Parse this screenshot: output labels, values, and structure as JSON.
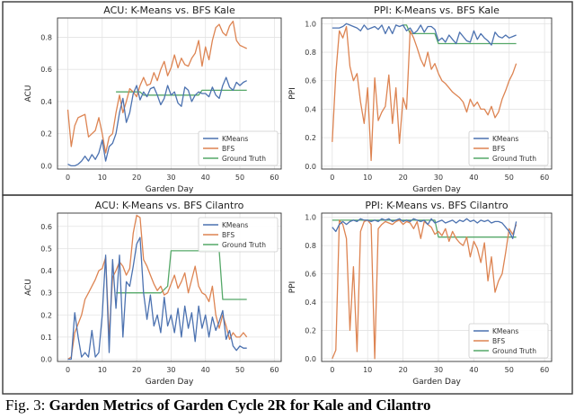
{
  "caption": {
    "prefix": "Fig. 3:",
    "text": "Garden Metrics of Garden Cycle 2R for Kale and Cilantro"
  },
  "colors": {
    "kmeans": "#4c72b0",
    "bfs": "#dd8452",
    "ground_truth": "#55a868",
    "border": "#3a3a3a"
  },
  "chart_data": [
    {
      "type": "line",
      "title": "ACU: K-Means vs. BFS Kale",
      "xlabel": "Garden Day",
      "ylabel": "ACU",
      "xlim": [
        -3,
        62
      ],
      "ylim": [
        -0.02,
        0.92
      ],
      "xticks": [
        0,
        10,
        20,
        30,
        40,
        50,
        60
      ],
      "yticks": [
        0.0,
        0.2,
        0.4,
        0.6,
        0.8
      ],
      "ytick_labels": [
        "0.0",
        "0.2",
        "0.4",
        "0.6",
        "0.8"
      ],
      "legend": [
        "KMeans",
        "BFS",
        "Ground Truth"
      ],
      "legend_position": "lower-right",
      "series": [
        {
          "name": "KMeans",
          "x": [
            0,
            1,
            2,
            3,
            4,
            5,
            6,
            7,
            8,
            9,
            10,
            11,
            12,
            13,
            14,
            15,
            16,
            17,
            18,
            19,
            20,
            21,
            22,
            23,
            24,
            25,
            26,
            27,
            28,
            29,
            30,
            31,
            32,
            33,
            34,
            35,
            36,
            37,
            38,
            39,
            40,
            41,
            42,
            43,
            44,
            45,
            46,
            47,
            48,
            49,
            50,
            51,
            52
          ],
          "y": [
            0.01,
            0.0,
            0.0,
            0.01,
            0.03,
            0.06,
            0.03,
            0.07,
            0.04,
            0.08,
            0.16,
            0.03,
            0.12,
            0.14,
            0.2,
            0.33,
            0.42,
            0.27,
            0.33,
            0.45,
            0.5,
            0.41,
            0.46,
            0.43,
            0.48,
            0.49,
            0.44,
            0.38,
            0.42,
            0.5,
            0.44,
            0.46,
            0.39,
            0.37,
            0.49,
            0.47,
            0.4,
            0.44,
            0.46,
            0.45,
            0.45,
            0.43,
            0.49,
            0.44,
            0.42,
            0.5,
            0.55,
            0.49,
            0.47,
            0.52,
            0.5,
            0.52,
            0.53
          ]
        },
        {
          "name": "BFS",
          "x": [
            0,
            1,
            2,
            3,
            4,
            5,
            6,
            7,
            8,
            9,
            10,
            11,
            12,
            13,
            14,
            15,
            16,
            17,
            18,
            19,
            20,
            21,
            22,
            23,
            24,
            25,
            26,
            27,
            28,
            29,
            30,
            31,
            32,
            33,
            34,
            35,
            36,
            37,
            38,
            39,
            40,
            41,
            42,
            43,
            44,
            45,
            46,
            47,
            48,
            49,
            50,
            51,
            52
          ],
          "y": [
            0.35,
            0.12,
            0.25,
            0.3,
            0.31,
            0.32,
            0.18,
            0.2,
            0.22,
            0.3,
            0.2,
            0.08,
            0.18,
            0.2,
            0.33,
            0.44,
            0.33,
            0.4,
            0.48,
            0.46,
            0.43,
            0.5,
            0.55,
            0.5,
            0.51,
            0.58,
            0.53,
            0.6,
            0.65,
            0.56,
            0.61,
            0.69,
            0.61,
            0.67,
            0.63,
            0.62,
            0.67,
            0.7,
            0.78,
            0.62,
            0.74,
            0.66,
            0.78,
            0.86,
            0.88,
            0.83,
            0.81,
            0.87,
            0.9,
            0.78,
            0.75,
            0.74,
            0.73
          ]
        },
        {
          "name": "Ground Truth",
          "x": [
            14,
            21,
            22,
            27,
            38,
            39,
            52
          ],
          "y": [
            0.46,
            0.46,
            0.44,
            0.44,
            0.44,
            0.47,
            0.47
          ]
        }
      ]
    },
    {
      "type": "line",
      "title": "PPI: K-Means vs. BFS Kale",
      "xlabel": "Garden Day",
      "ylabel": "PPI",
      "xlim": [
        -3,
        62
      ],
      "ylim": [
        -0.02,
        1.04
      ],
      "xticks": [
        0,
        10,
        20,
        30,
        40,
        50,
        60
      ],
      "yticks": [
        0.0,
        0.2,
        0.4,
        0.6,
        0.8,
        1.0
      ],
      "ytick_labels": [
        "0.0",
        "0.2",
        "0.4",
        "0.6",
        "0.8",
        "1.0"
      ],
      "legend": [
        "KMeans",
        "BFS",
        "Ground Truth"
      ],
      "legend_position": "lower-right",
      "series": [
        {
          "name": "KMeans",
          "x": [
            0,
            1,
            2,
            3,
            4,
            5,
            6,
            7,
            8,
            9,
            10,
            11,
            12,
            13,
            14,
            15,
            16,
            17,
            18,
            19,
            20,
            21,
            22,
            23,
            24,
            25,
            26,
            27,
            28,
            29,
            30,
            31,
            32,
            33,
            34,
            35,
            36,
            37,
            38,
            39,
            40,
            41,
            42,
            43,
            44,
            45,
            46,
            47,
            48,
            49,
            50,
            51,
            52
          ],
          "y": [
            0.97,
            0.97,
            0.97,
            0.98,
            1.0,
            0.99,
            0.98,
            0.97,
            0.95,
            0.99,
            0.96,
            0.97,
            0.98,
            0.96,
            0.99,
            0.93,
            0.98,
            0.93,
            0.99,
            0.98,
            0.99,
            0.95,
            0.97,
            0.93,
            0.95,
            0.99,
            0.94,
            0.98,
            0.98,
            0.96,
            0.88,
            0.9,
            0.87,
            0.92,
            0.89,
            0.86,
            0.94,
            0.91,
            0.88,
            0.87,
            0.95,
            0.89,
            0.93,
            0.9,
            0.88,
            0.85,
            0.94,
            0.91,
            0.9,
            0.92,
            0.9,
            0.91,
            0.92
          ]
        },
        {
          "name": "BFS",
          "x": [
            0,
            1,
            2,
            3,
            4,
            5,
            6,
            7,
            8,
            9,
            10,
            11,
            12,
            13,
            14,
            15,
            16,
            17,
            18,
            19,
            20,
            21,
            22,
            23,
            24,
            25,
            26,
            27,
            28,
            29,
            30,
            31,
            32,
            33,
            34,
            35,
            36,
            37,
            38,
            39,
            40,
            41,
            42,
            43,
            44,
            45,
            46,
            47,
            48,
            49,
            50,
            51,
            52
          ],
          "y": [
            0.17,
            0.65,
            0.95,
            0.9,
            0.98,
            0.7,
            0.6,
            0.65,
            0.45,
            0.3,
            0.55,
            0.04,
            0.62,
            0.32,
            0.38,
            0.42,
            0.64,
            0.3,
            0.55,
            0.16,
            0.48,
            0.4,
            0.95,
            0.9,
            0.83,
            0.75,
            0.7,
            0.8,
            0.68,
            0.72,
            0.65,
            0.6,
            0.58,
            0.55,
            0.52,
            0.5,
            0.48,
            0.45,
            0.38,
            0.47,
            0.42,
            0.45,
            0.4,
            0.4,
            0.36,
            0.42,
            0.34,
            0.38,
            0.47,
            0.53,
            0.6,
            0.65,
            0.72
          ]
        },
        {
          "name": "Ground Truth",
          "x": [
            20,
            21,
            22,
            29,
            30,
            52
          ],
          "y": [
            0.99,
            0.99,
            0.93,
            0.93,
            0.86,
            0.86
          ]
        }
      ]
    },
    {
      "type": "line",
      "title": "ACU: K-Means vs. BFS Cilantro",
      "xlabel": "Garden Day",
      "ylabel": "ACU",
      "xlim": [
        -3,
        62
      ],
      "ylim": [
        -0.01,
        0.66
      ],
      "xticks": [
        0,
        10,
        20,
        30,
        40,
        50,
        60
      ],
      "yticks": [
        0.0,
        0.1,
        0.2,
        0.3,
        0.4,
        0.5,
        0.6
      ],
      "ytick_labels": [
        "0.0",
        "0.1",
        "0.2",
        "0.3",
        "0.4",
        "0.5",
        "0.6"
      ],
      "legend": [
        "KMeans",
        "BFS",
        "Ground Truth"
      ],
      "legend_position": "top-right",
      "series": [
        {
          "name": "KMeans",
          "x": [
            0,
            1,
            2,
            3,
            4,
            5,
            6,
            7,
            8,
            9,
            10,
            11,
            12,
            13,
            14,
            15,
            16,
            17,
            18,
            19,
            20,
            21,
            22,
            23,
            24,
            25,
            26,
            27,
            28,
            29,
            30,
            31,
            32,
            33,
            34,
            35,
            36,
            37,
            38,
            39,
            40,
            41,
            42,
            43,
            44,
            45,
            46,
            47,
            48,
            49,
            50,
            51,
            52
          ],
          "y": [
            0.0,
            0.0,
            0.21,
            0.1,
            0.01,
            0.03,
            0.01,
            0.13,
            0.01,
            0.03,
            0.2,
            0.47,
            0.03,
            0.45,
            0.23,
            0.47,
            0.1,
            0.35,
            0.33,
            0.42,
            0.52,
            0.55,
            0.3,
            0.18,
            0.29,
            0.15,
            0.2,
            0.12,
            0.28,
            0.15,
            0.2,
            0.12,
            0.23,
            0.1,
            0.24,
            0.14,
            0.21,
            0.08,
            0.24,
            0.14,
            0.2,
            0.1,
            0.19,
            0.13,
            0.17,
            0.22,
            0.09,
            0.13,
            0.06,
            0.04,
            0.06,
            0.05,
            0.05
          ]
        },
        {
          "name": "BFS",
          "x": [
            0,
            1,
            2,
            3,
            4,
            5,
            6,
            7,
            8,
            9,
            10,
            11,
            12,
            13,
            14,
            15,
            16,
            17,
            18,
            19,
            20,
            21,
            22,
            23,
            24,
            25,
            26,
            27,
            28,
            29,
            30,
            31,
            32,
            33,
            34,
            35,
            36,
            37,
            38,
            39,
            40,
            41,
            42,
            43,
            44,
            45,
            46,
            47,
            48,
            49,
            50,
            51,
            52
          ],
          "y": [
            0.0,
            0.01,
            0.12,
            0.16,
            0.2,
            0.27,
            0.3,
            0.33,
            0.36,
            0.4,
            0.41,
            0.46,
            0.1,
            0.37,
            0.4,
            0.44,
            0.42,
            0.38,
            0.41,
            0.57,
            0.65,
            0.64,
            0.45,
            0.42,
            0.38,
            0.34,
            0.31,
            0.33,
            0.29,
            0.3,
            0.34,
            0.38,
            0.32,
            0.35,
            0.39,
            0.3,
            0.36,
            0.42,
            0.33,
            0.3,
            0.29,
            0.26,
            0.33,
            0.2,
            0.14,
            0.2,
            0.15,
            0.09,
            0.12,
            0.1,
            0.1,
            0.12,
            0.1
          ]
        },
        {
          "name": "Ground Truth",
          "x": [
            14,
            27,
            29,
            30,
            44,
            45,
            52
          ],
          "y": [
            0.3,
            0.3,
            0.33,
            0.49,
            0.49,
            0.27,
            0.27
          ]
        }
      ]
    },
    {
      "type": "line",
      "title": "PPI: K-Means vs. BFS Cilantro",
      "xlabel": "Garden Day",
      "ylabel": "PPI",
      "xlim": [
        -3,
        62
      ],
      "ylim": [
        -0.02,
        1.03
      ],
      "xticks": [
        0,
        10,
        20,
        30,
        40,
        50,
        60
      ],
      "yticks": [
        0.0,
        0.2,
        0.4,
        0.6,
        0.8,
        1.0
      ],
      "ytick_labels": [
        "0.0",
        "0.2",
        "0.4",
        "0.6",
        "0.8",
        "1.0"
      ],
      "legend": [
        "KMeans",
        "BFS",
        "Ground Truth"
      ],
      "legend_position": "lower-right",
      "series": [
        {
          "name": "KMeans",
          "x": [
            0,
            1,
            2,
            3,
            4,
            5,
            6,
            7,
            8,
            9,
            10,
            11,
            12,
            13,
            14,
            15,
            16,
            17,
            18,
            19,
            20,
            21,
            22,
            23,
            24,
            25,
            26,
            27,
            28,
            29,
            30,
            31,
            32,
            33,
            34,
            35,
            36,
            37,
            38,
            39,
            40,
            41,
            42,
            43,
            44,
            45,
            46,
            47,
            48,
            49,
            50,
            51,
            52
          ],
          "y": [
            0.93,
            0.9,
            0.95,
            0.97,
            0.95,
            0.97,
            0.98,
            0.97,
            0.99,
            0.98,
            0.98,
            0.97,
            0.98,
            0.97,
            0.99,
            0.98,
            0.99,
            0.97,
            0.98,
            0.99,
            0.97,
            0.98,
            0.97,
            0.99,
            0.98,
            0.97,
            0.98,
            0.95,
            0.99,
            0.96,
            0.97,
            0.98,
            0.96,
            0.97,
            0.98,
            0.96,
            0.98,
            0.97,
            0.99,
            0.97,
            0.98,
            0.96,
            0.98,
            0.97,
            0.98,
            0.96,
            0.97,
            0.97,
            0.96,
            0.93,
            0.9,
            0.85,
            0.97
          ]
        },
        {
          "name": "BFS",
          "x": [
            0,
            1,
            2,
            3,
            4,
            5,
            6,
            7,
            8,
            9,
            10,
            11,
            12,
            13,
            14,
            15,
            16,
            17,
            18,
            19,
            20,
            21,
            22,
            23,
            24,
            25,
            26,
            27,
            28,
            29,
            30,
            31,
            32,
            33,
            34,
            35,
            36,
            37,
            38,
            39,
            40,
            41,
            42,
            43,
            44,
            45,
            46,
            47,
            48,
            49,
            50,
            51,
            52
          ],
          "y": [
            0.0,
            0.06,
            0.98,
            0.95,
            0.85,
            0.2,
            0.65,
            0.05,
            0.9,
            0.97,
            0.98,
            0.95,
            0.0,
            0.92,
            0.95,
            0.97,
            0.96,
            0.95,
            0.97,
            0.98,
            0.95,
            0.97,
            0.96,
            0.92,
            0.97,
            0.85,
            0.97,
            0.95,
            0.93,
            0.88,
            0.9,
            0.87,
            0.92,
            0.83,
            0.9,
            0.85,
            0.82,
            0.8,
            0.86,
            0.72,
            0.83,
            0.78,
            0.68,
            0.82,
            0.55,
            0.72,
            0.47,
            0.55,
            0.6,
            0.75,
            0.92,
            0.88,
            0.95
          ]
        },
        {
          "name": "Ground Truth",
          "x": [
            0,
            29,
            30,
            52
          ],
          "y": [
            0.98,
            0.98,
            0.86,
            0.86
          ]
        }
      ]
    }
  ]
}
